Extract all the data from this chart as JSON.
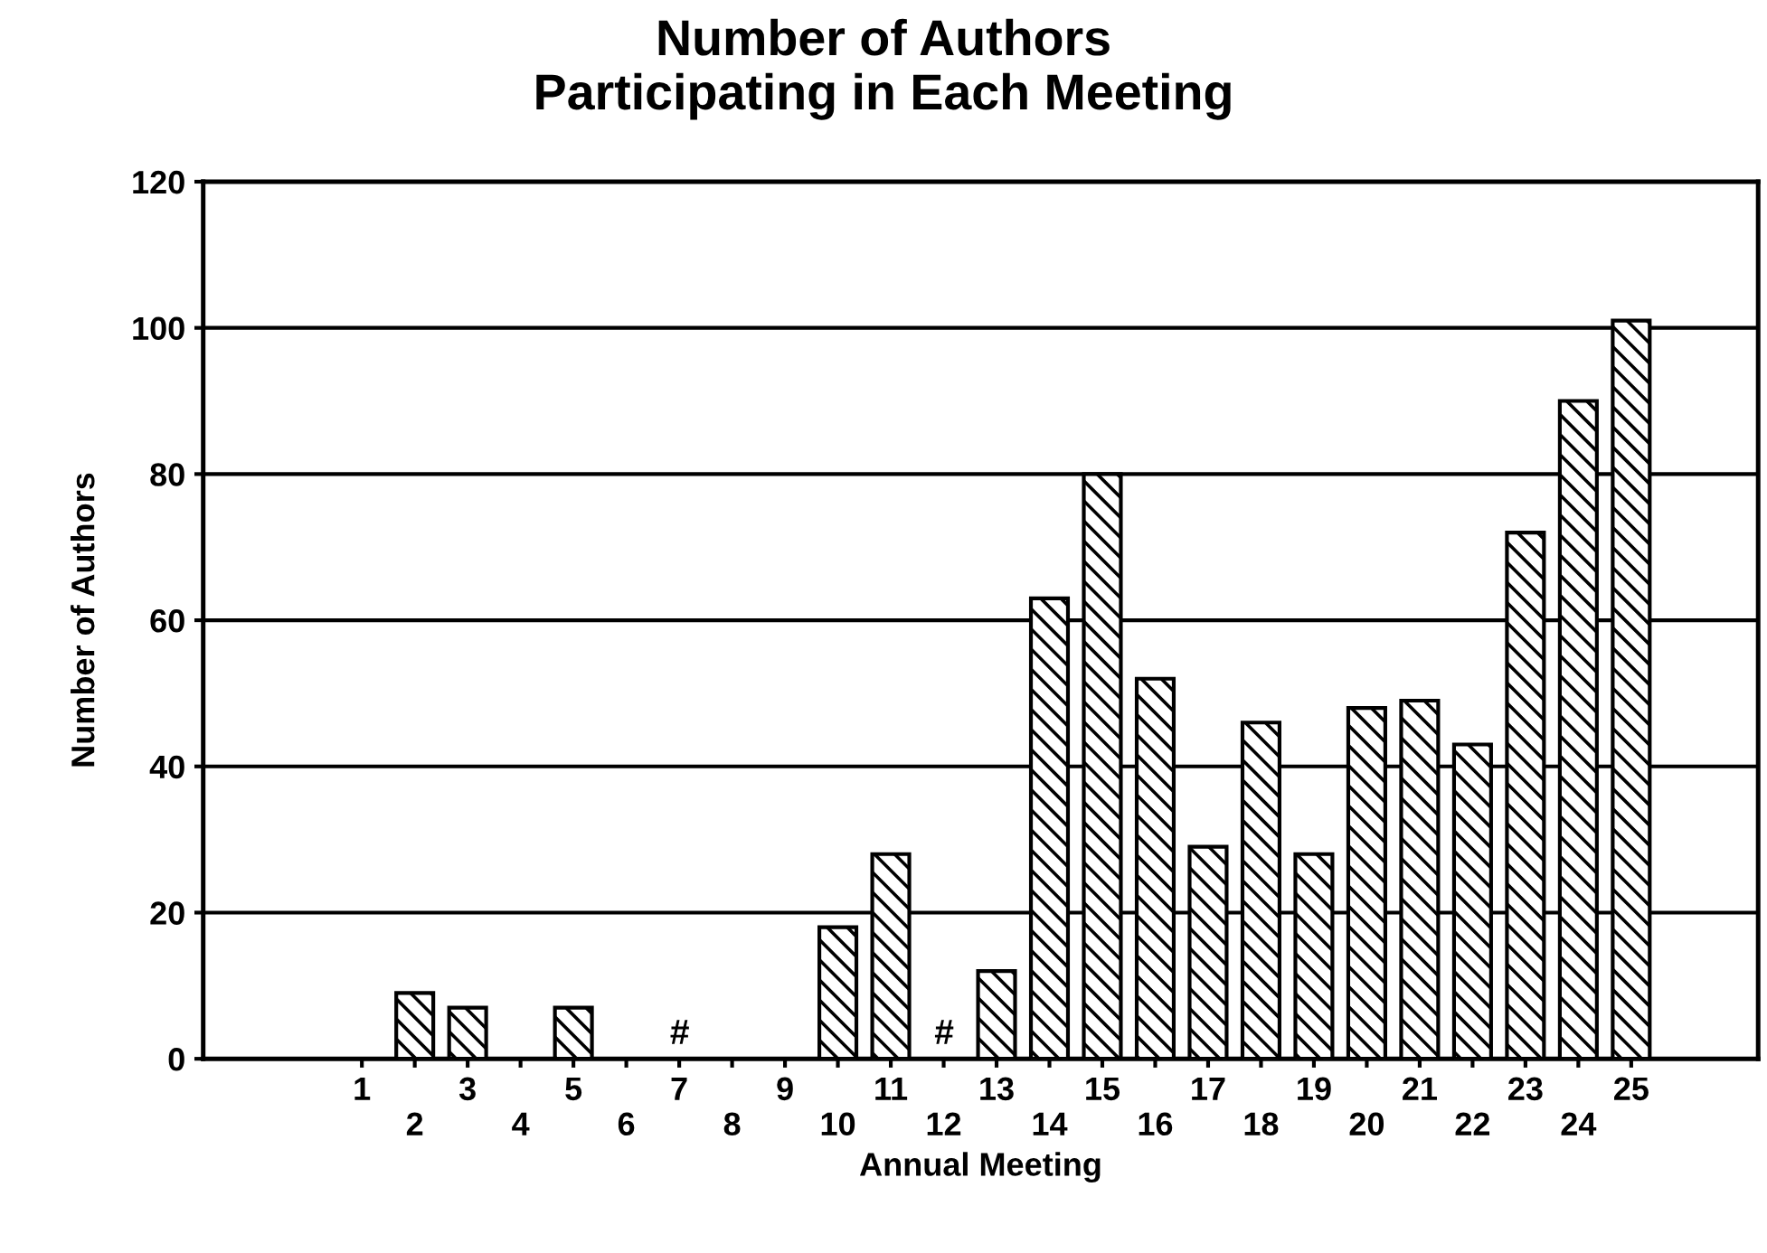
{
  "chart_data": {
    "type": "bar",
    "title": "Number of Authors\nParticipating in Each Meeting",
    "xlabel": "Annual Meeting",
    "ylabel": "Number of Authors",
    "categories": [
      "1",
      "2",
      "3",
      "4",
      "5",
      "6",
      "7",
      "8",
      "9",
      "10",
      "11",
      "12",
      "13",
      "14",
      "15",
      "16",
      "17",
      "18",
      "19",
      "20",
      "21",
      "22",
      "23",
      "24",
      "25"
    ],
    "values": [
      0,
      9,
      7,
      0,
      7,
      0,
      0,
      0,
      0,
      18,
      28,
      0,
      12,
      63,
      80,
      52,
      29,
      46,
      28,
      48,
      49,
      43,
      72,
      90,
      101
    ],
    "color": "#000000",
    "ylim": [
      0,
      120
    ],
    "yticks": [
      0,
      20,
      40,
      60,
      80,
      100,
      120
    ],
    "grid": "y",
    "annotations": [
      {
        "text": "#",
        "x": "7",
        "y": 0
      },
      {
        "text": "#",
        "x": "12",
        "y": 0
      }
    ]
  }
}
